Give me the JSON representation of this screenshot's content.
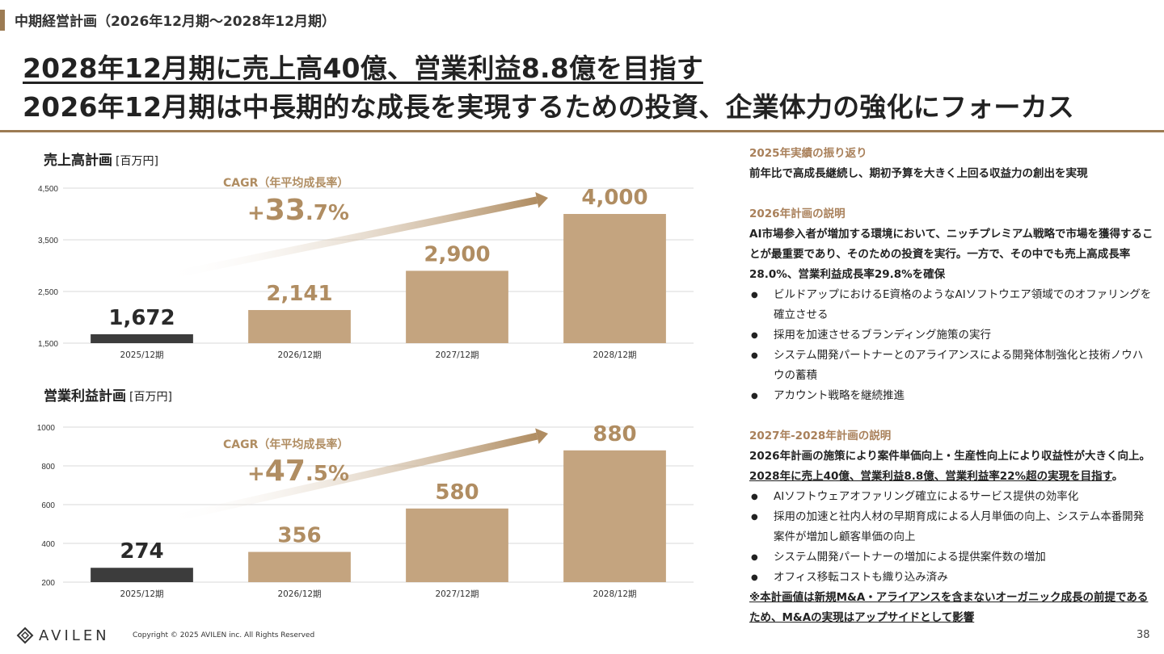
{
  "section_title": "中期経営計画（2026年12月期〜2028年12月期）",
  "headline_1": "2028年12月期に売上高40億、営業利益8.8億を目指す",
  "headline_2": "2026年12月期は中長期的な成長を実現するための投資、企業体力の強化にフォーカス",
  "colors": {
    "accent": "#9c7b53",
    "bar_future": "#c4a47f",
    "bar_actual": "#3c3c3c",
    "cagr": "#b08d62",
    "heading": "#a9805a"
  },
  "chart_data": [
    {
      "type": "bar",
      "title": "売上高計画",
      "unit": "[百万円]",
      "categories": [
        "2025/12期",
        "2026/12期",
        "2027/12期",
        "2028/12期"
      ],
      "values": [
        1672,
        2141,
        2900,
        4000
      ],
      "value_labels": [
        "1,672",
        "2,141",
        "2,900",
        "4,000"
      ],
      "ylim": [
        1500,
        4500
      ],
      "yticks": [
        1500,
        2500,
        3500,
        4500
      ],
      "ytick_labels": [
        "1,500",
        "2,500",
        "3,500",
        "4,500"
      ],
      "grid": true,
      "cagr_label": "CAGR（年平均成長率）",
      "cagr_sign": "+",
      "cagr_int": "33",
      "cagr_dec": ".7%"
    },
    {
      "type": "bar",
      "title": "営業利益計画",
      "unit": "[百万円]",
      "categories": [
        "2025/12期",
        "2026/12期",
        "2027/12期",
        "2028/12期"
      ],
      "values": [
        274,
        356,
        580,
        880
      ],
      "value_labels": [
        "274",
        "356",
        "580",
        "880"
      ],
      "ylim": [
        200,
        1000
      ],
      "yticks": [
        200,
        400,
        600,
        800,
        1000
      ],
      "ytick_labels": [
        "200",
        "400",
        "600",
        "800",
        "1000"
      ],
      "grid": true,
      "cagr_label": "CAGR（年平均成長率）",
      "cagr_sign": "+",
      "cagr_int": "47",
      "cagr_dec": ".5%"
    }
  ],
  "right": {
    "h1": "2025年実績の振り返り",
    "b1": "前年比で高成長継続し、期初予算を大きく上回る収益力の創出を実現",
    "h2": "2026年計画の説明",
    "b2": "AI市場参入者が増加する環境において、ニッチプレミアム戦略で市場を獲得することが最重要であり、そのための投資を実行。一方で、その中でも売上高成長率28.0%、営業利益成長率29.8%を確保",
    "list2": [
      "ビルドアップにおけるE資格のようなAIソフトウエア領域でのオファリングを確立させる",
      "採用を加速させるブランディング施策の実行",
      "システム開発パートナーとのアライアンスによる開発体制強化と技術ノウハウの蓄積",
      "アカウント戦略を継続推進"
    ],
    "h3": "2027年-2028年計画の説明",
    "b3a": "2026年計画の施策により案件単価向上・生産性向上により収益性が大きく向上。",
    "b3b": "2028年に売上40億、営業利益8.8億、営業利益率22%超の実現を目指す",
    "b3c": "。",
    "list3": [
      "AIソフトウェアオファリング確立によるサービス提供の効率化",
      "採用の加速と社内人材の早期育成による人月単価の向上、システム本番開発案件が増加し顧客単価の向上",
      "システム開発パートナーの増加による提供案件数の増加",
      "オフィス移転コストも織り込み済み"
    ],
    "note": "※本計画値は新規M&A・アライアンスを含まないオーガニック成長の前提であるため、M&Aの実現はアップサイドとして影響"
  },
  "footer": {
    "logo": "AVILEN",
    "copyright": "Copyright © 2025 AVILEN inc. All Rights Reserved",
    "page": "38"
  }
}
